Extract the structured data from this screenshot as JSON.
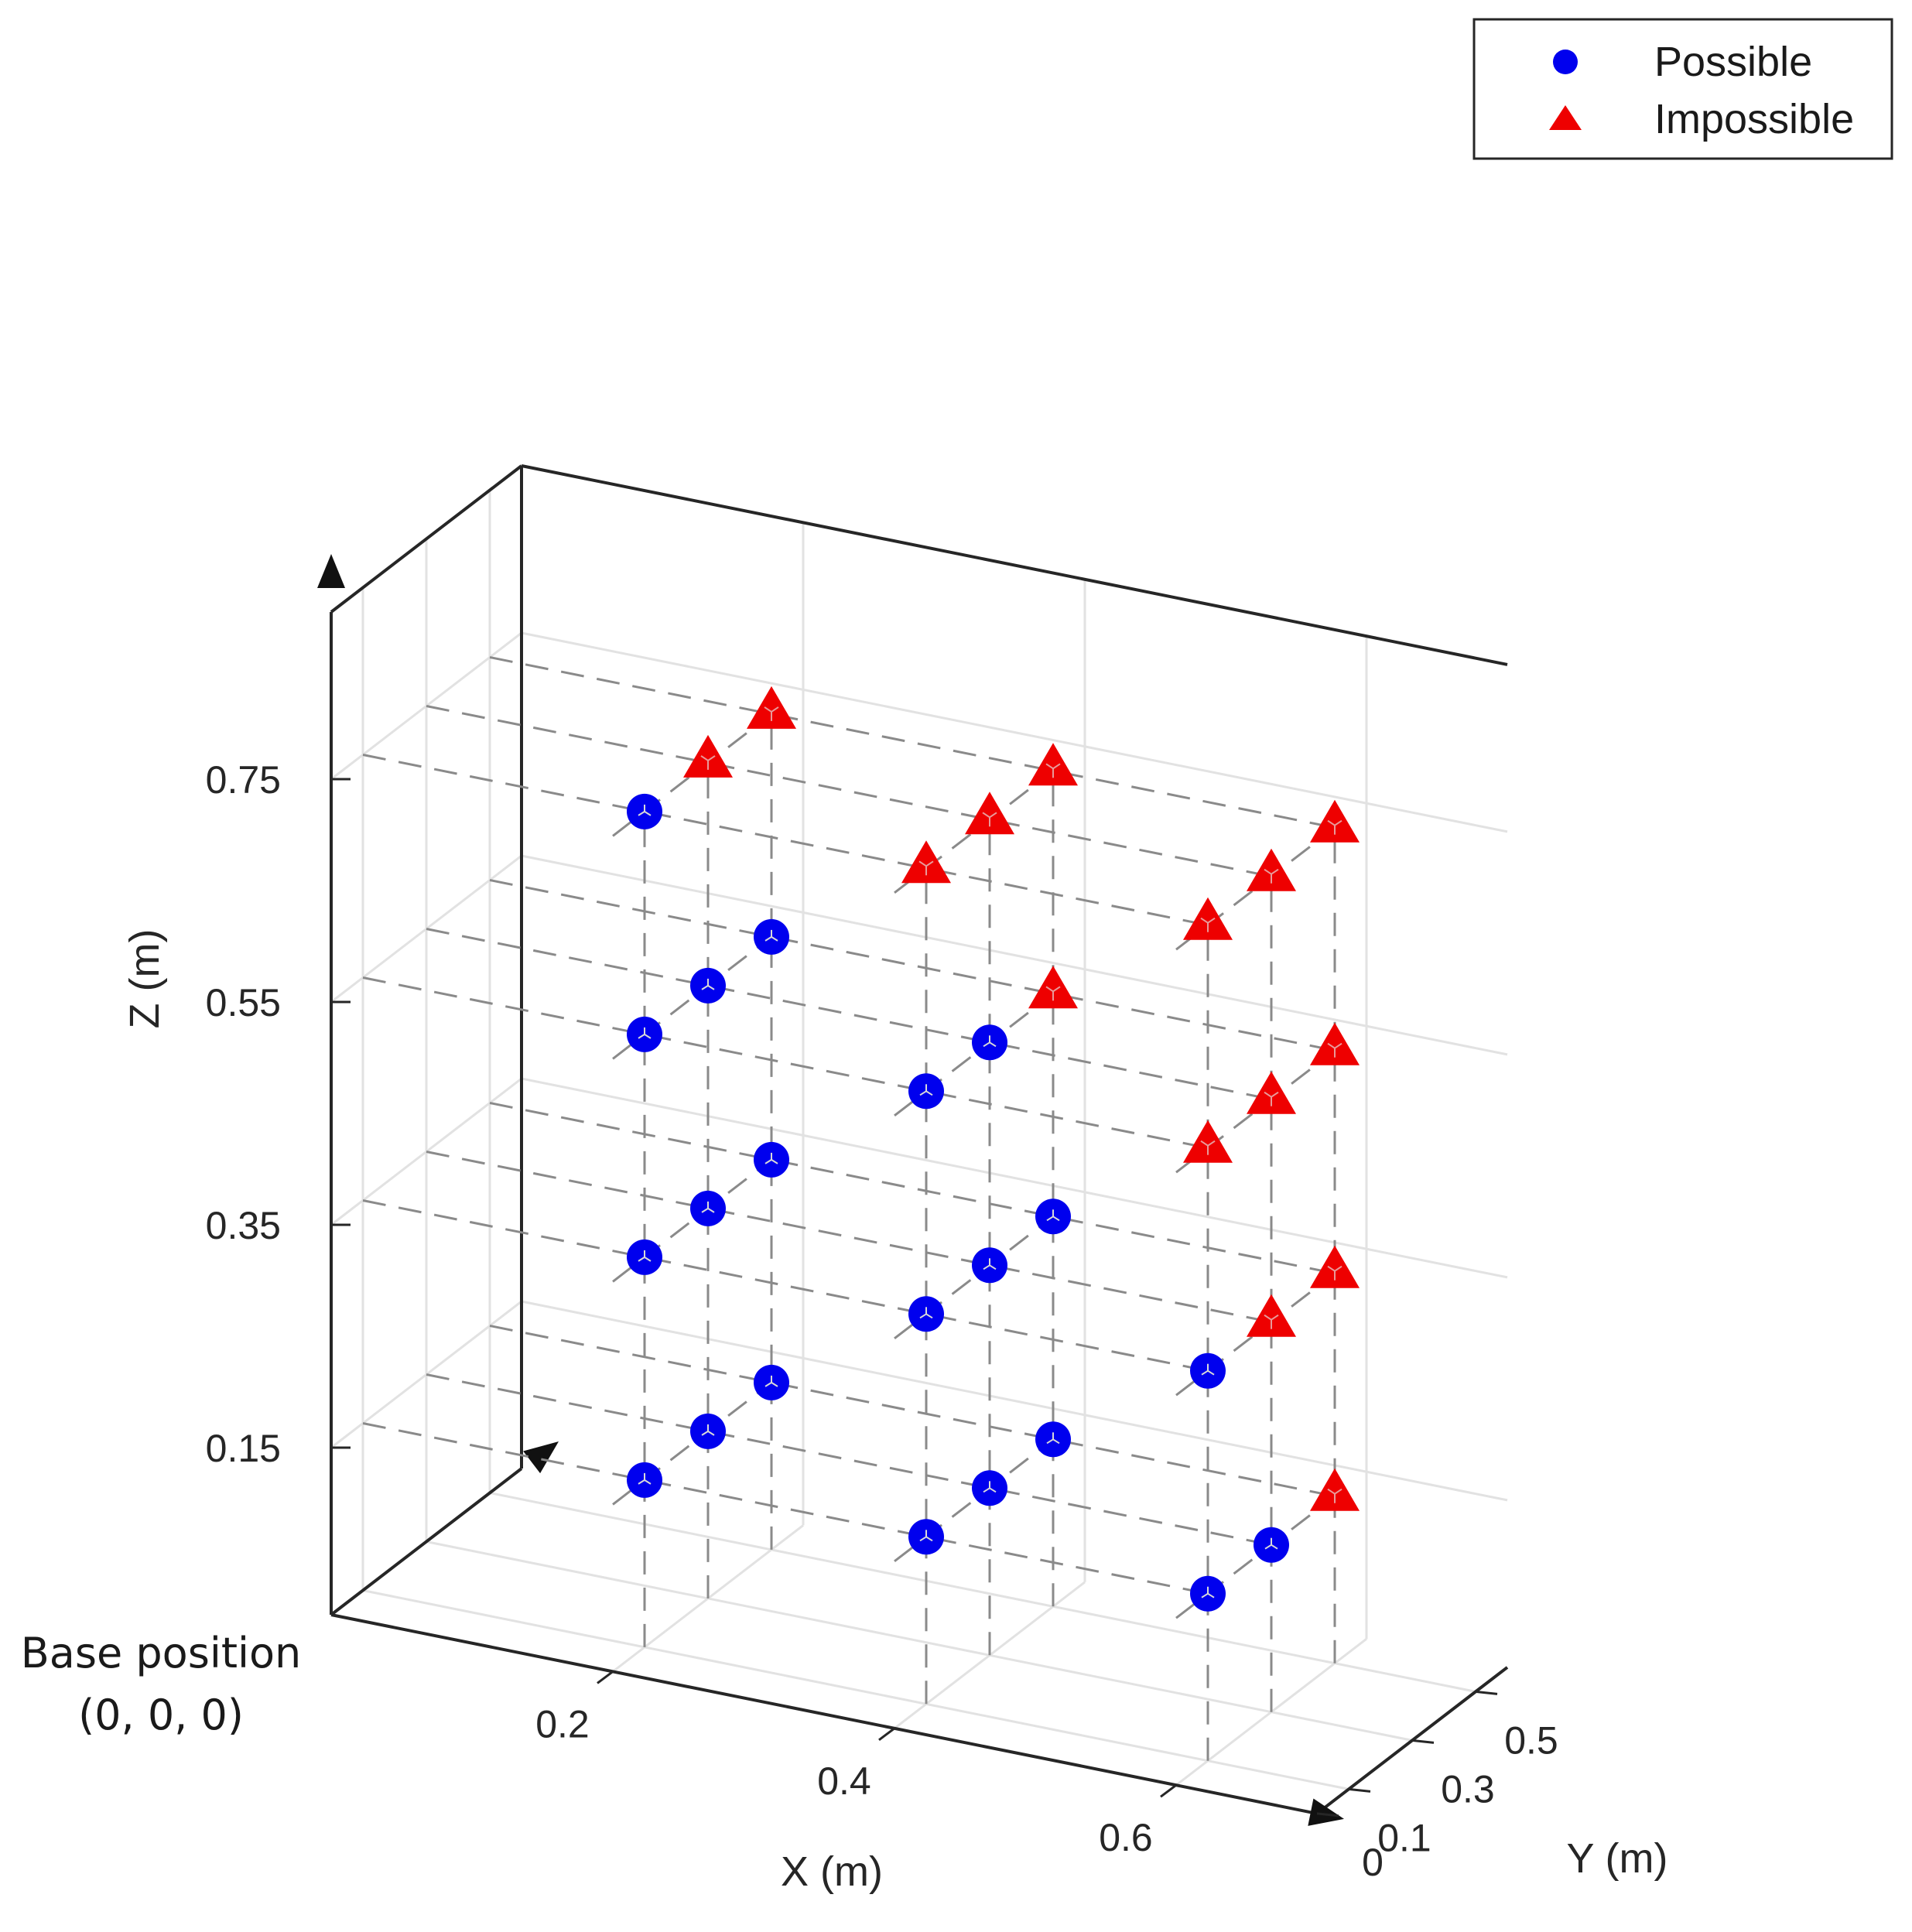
{
  "chart_data": {
    "type": "scatter3d",
    "xlabel": "X (m)",
    "ylabel": "Y (m)",
    "zlabel": "Z (m)",
    "x_ticks": [
      "0.2",
      "0.4",
      "0.6"
    ],
    "y_ticks": [
      "0",
      "0.1",
      "0.3",
      "0.5"
    ],
    "z_ticks": [
      "0.75",
      "0.55",
      "0.35",
      "0.15"
    ],
    "annotation": [
      "Base position",
      "(0, 0, 0)"
    ],
    "legend_position": "top-right",
    "grid": true,
    "colors": {
      "possible": "#0000ee",
      "impossible": "#ee0000"
    },
    "series": [
      {
        "name": "Possible",
        "marker": "circle",
        "points": [
          [
            0.2,
            0.1,
            0.15
          ],
          [
            0.2,
            0.1,
            0.35
          ],
          [
            0.2,
            0.1,
            0.55
          ],
          [
            0.2,
            0.1,
            0.75
          ],
          [
            0.2,
            0.3,
            0.15
          ],
          [
            0.2,
            0.3,
            0.35
          ],
          [
            0.2,
            0.3,
            0.55
          ],
          [
            0.2,
            0.5,
            0.15
          ],
          [
            0.2,
            0.5,
            0.35
          ],
          [
            0.2,
            0.5,
            0.55
          ],
          [
            0.4,
            0.1,
            0.15
          ],
          [
            0.4,
            0.1,
            0.35
          ],
          [
            0.4,
            0.1,
            0.55
          ],
          [
            0.4,
            0.3,
            0.15
          ],
          [
            0.4,
            0.3,
            0.35
          ],
          [
            0.4,
            0.3,
            0.55
          ],
          [
            0.4,
            0.5,
            0.15
          ],
          [
            0.4,
            0.5,
            0.35
          ],
          [
            0.6,
            0.1,
            0.15
          ],
          [
            0.6,
            0.1,
            0.35
          ],
          [
            0.6,
            0.3,
            0.15
          ]
        ]
      },
      {
        "name": "Impossible",
        "marker": "triangle",
        "points": [
          [
            0.2,
            0.3,
            0.75
          ],
          [
            0.2,
            0.5,
            0.75
          ],
          [
            0.4,
            0.1,
            0.75
          ],
          [
            0.4,
            0.3,
            0.75
          ],
          [
            0.4,
            0.5,
            0.75
          ],
          [
            0.4,
            0.5,
            0.55
          ],
          [
            0.6,
            0.1,
            0.55
          ],
          [
            0.6,
            0.1,
            0.75
          ],
          [
            0.6,
            0.3,
            0.35
          ],
          [
            0.6,
            0.3,
            0.55
          ],
          [
            0.6,
            0.3,
            0.75
          ],
          [
            0.6,
            0.5,
            0.15
          ],
          [
            0.6,
            0.5,
            0.35
          ],
          [
            0.6,
            0.5,
            0.55
          ],
          [
            0.6,
            0.5,
            0.75
          ]
        ]
      }
    ]
  }
}
